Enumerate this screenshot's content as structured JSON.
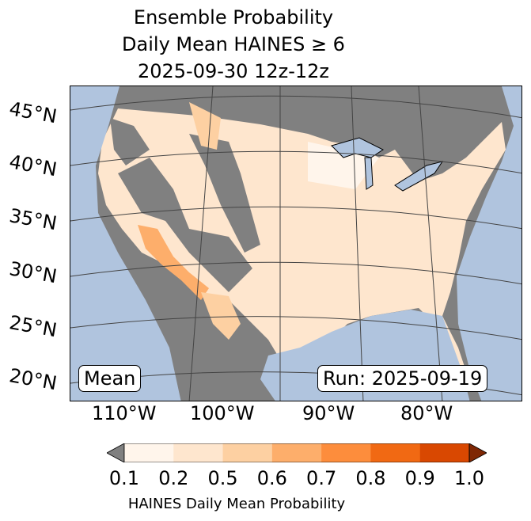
{
  "title": [
    "Ensemble Probability",
    "Daily Mean HAINES ≥ 6",
    "2025-09-30 12z-12z"
  ],
  "lat_labels": [
    "45°N",
    "40°N",
    "35°N",
    "30°N",
    "25°N",
    "20°N"
  ],
  "lon_labels": [
    "110°W",
    "100°W",
    "90°W",
    "80°W"
  ],
  "mean_box": "Mean",
  "run_box": "Run: 2025-09-19",
  "colorbar": {
    "ticks": [
      "0.1",
      "0.2",
      "0.5",
      "0.6",
      "0.7",
      "0.8",
      "0.9",
      "1.0"
    ],
    "label": "HAINES Daily Mean Probability",
    "colors": [
      "#fff5eb",
      "#fee6ce",
      "#fdd0a2",
      "#fdae6b",
      "#fd8d3c",
      "#f16913",
      "#d94801"
    ],
    "under": "#808080",
    "over": "#7f2704"
  },
  "colors": {
    "ocean": "#b0c4de",
    "nodata": "#808080",
    "land": "#fee6ce"
  }
}
